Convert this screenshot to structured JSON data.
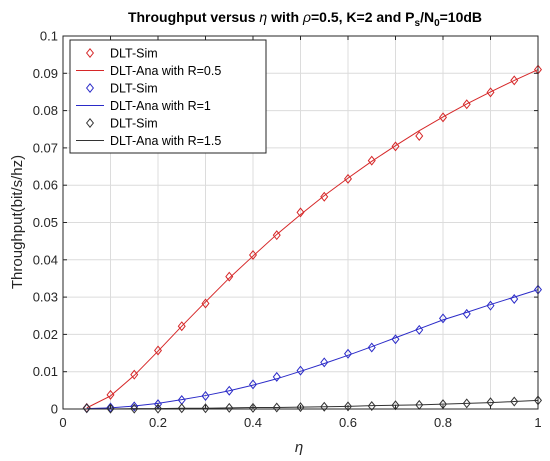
{
  "chart_data": {
    "type": "line",
    "title_parts": {
      "prefix": "Throughput versus ",
      "eta": "η",
      "middle": " with ",
      "rho": "ρ",
      "suffix1": "=0.5, K=2 and P",
      "sub_s": "s",
      "slash": "/N",
      "sub_0": "0",
      "suffix2": "=10dB"
    },
    "xlabel": "η",
    "ylabel": "Throughput(bit/s/hz)",
    "xlim": [
      0,
      1
    ],
    "ylim": [
      0,
      0.1
    ],
    "xticks": [
      "0",
      "0.2",
      "0.4",
      "0.6",
      "0.8",
      "1"
    ],
    "yticks": [
      "0",
      "0.01",
      "0.02",
      "0.03",
      "0.04",
      "0.05",
      "0.06",
      "0.07",
      "0.08",
      "0.09",
      "0.1"
    ],
    "grid": true,
    "legend_position": "top-left",
    "x": [
      0.05,
      0.1,
      0.15,
      0.2,
      0.25,
      0.3,
      0.35,
      0.4,
      0.45,
      0.5,
      0.55,
      0.6,
      0.65,
      0.7,
      0.75,
      0.8,
      0.85,
      0.9,
      0.95,
      1.0
    ],
    "series": [
      {
        "name": "DLT-Sim",
        "style": "markers",
        "color": "#d62728",
        "values": [
          0.0003,
          0.0038,
          0.0092,
          0.0157,
          0.0222,
          0.0283,
          0.0355,
          0.0413,
          0.0466,
          0.0527,
          0.0569,
          0.0617,
          0.0666,
          0.0704,
          0.0732,
          0.0782,
          0.0817,
          0.0849,
          0.0881,
          0.091
        ]
      },
      {
        "name": "DLT-Ana with R=0.5",
        "style": "line",
        "color": "#d62728",
        "values": [
          0.0003,
          0.0035,
          0.009,
          0.0155,
          0.0222,
          0.0287,
          0.0351,
          0.041,
          0.0468,
          0.0521,
          0.0572,
          0.0619,
          0.0664,
          0.0706,
          0.0746,
          0.0783,
          0.0818,
          0.085,
          0.0881,
          0.091
        ]
      },
      {
        "name": "DLT-Sim",
        "style": "markers",
        "color": "#2b2bc8",
        "values": [
          0.0002,
          0.0004,
          0.0007,
          0.0013,
          0.0024,
          0.0035,
          0.0049,
          0.0066,
          0.0086,
          0.0103,
          0.0125,
          0.0148,
          0.0165,
          0.0187,
          0.0212,
          0.0243,
          0.0255,
          0.0277,
          0.0295,
          0.032
        ]
      },
      {
        "name": "DLT-Ana with R=1",
        "style": "line",
        "color": "#2b2bc8",
        "values": [
          0.0001,
          0.0003,
          0.0008,
          0.0015,
          0.0025,
          0.0036,
          0.0049,
          0.0064,
          0.0081,
          0.0101,
          0.0122,
          0.0144,
          0.0167,
          0.0191,
          0.0215,
          0.0239,
          0.0259,
          0.028,
          0.03,
          0.032
        ]
      },
      {
        "name": "DLT-Sim",
        "style": "markers",
        "color": "#333333",
        "values": [
          0.0002,
          0.0001,
          0.0001,
          0.0001,
          0.0002,
          0.0002,
          0.0003,
          0.0003,
          0.0004,
          0.0005,
          0.0006,
          0.0007,
          0.0008,
          0.001,
          0.0011,
          0.0013,
          0.0015,
          0.0018,
          0.002,
          0.0023
        ]
      },
      {
        "name": "DLT-Ana with R=1.5",
        "style": "line",
        "color": "#333333",
        "values": [
          0.0,
          0.0,
          0.0001,
          0.0001,
          0.0002,
          0.0002,
          0.0003,
          0.0004,
          0.0004,
          0.0005,
          0.0006,
          0.0007,
          0.0009,
          0.001,
          0.0011,
          0.0013,
          0.0015,
          0.0017,
          0.002,
          0.0023
        ]
      }
    ]
  }
}
